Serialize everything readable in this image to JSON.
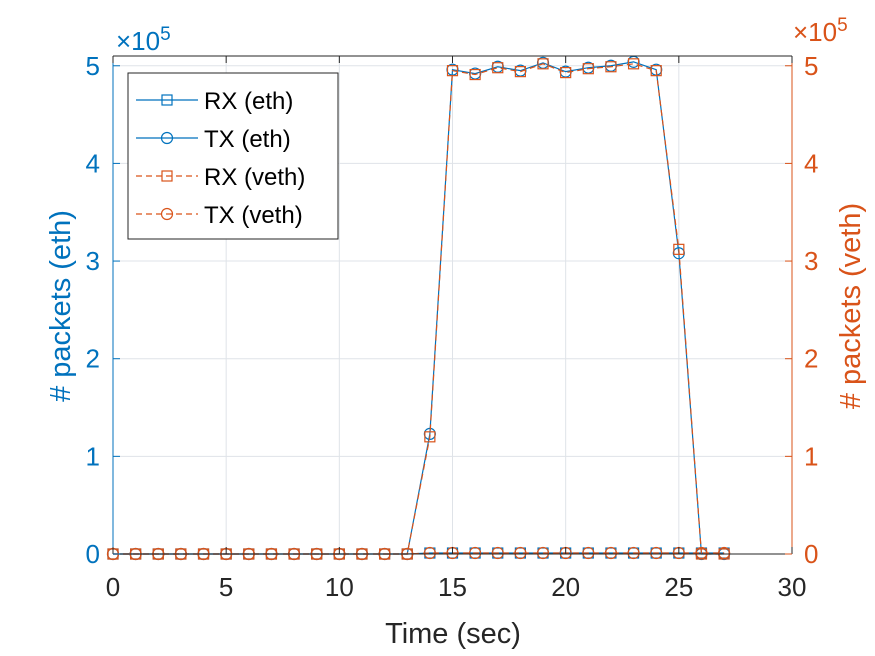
{
  "chart_data": {
    "type": "line",
    "xlabel": "Time (sec)",
    "ylabel_left": "# packets (eth)",
    "ylabel_right": "# packets (veth)",
    "exponent_label_left": "×10",
    "exponent_label_right": "×10",
    "exponent": "5",
    "xlim": [
      0,
      30
    ],
    "ylim_left": [
      0,
      5.1
    ],
    "ylim_right": [
      0,
      5.1
    ],
    "y_unit_multiplier": 100000,
    "xticks": [
      0,
      5,
      10,
      15,
      20,
      25,
      30
    ],
    "yticks": [
      0,
      1,
      2,
      3,
      4,
      5
    ],
    "grid": true,
    "legend_position": "top-left",
    "colors": {
      "left_axis": "#0072BD",
      "right_axis": "#D95319",
      "grid": "#dfe3e8"
    },
    "x": [
      0,
      1,
      2,
      3,
      4,
      5,
      6,
      7,
      8,
      9,
      10,
      11,
      12,
      13,
      14,
      15,
      16,
      17,
      18,
      19,
      20,
      21,
      22,
      23,
      24,
      25,
      26,
      27
    ],
    "series": [
      {
        "name": "RX (eth)",
        "axis": "left",
        "color": "#0072BD",
        "line": "solid",
        "marker": "square",
        "values": [
          0,
          0,
          0,
          0,
          0,
          0,
          0,
          0,
          0,
          0,
          0,
          0,
          0,
          0,
          0.01,
          0.01,
          0.01,
          0.01,
          0.01,
          0.01,
          0.01,
          0.01,
          0.01,
          0.01,
          0.01,
          0.01,
          0.01,
          0.01
        ]
      },
      {
        "name": "TX (eth)",
        "axis": "left",
        "color": "#0072BD",
        "line": "solid",
        "marker": "circle",
        "values": [
          0,
          0,
          0,
          0,
          0,
          0,
          0,
          0,
          0,
          0,
          0,
          0,
          0,
          0,
          1.23,
          4.96,
          4.92,
          4.99,
          4.95,
          5.03,
          4.94,
          4.98,
          5.0,
          5.04,
          4.96,
          3.08,
          0,
          0
        ]
      },
      {
        "name": "RX (veth)",
        "axis": "right",
        "color": "#D95319",
        "line": "dashed",
        "marker": "square",
        "values": [
          0,
          0,
          0,
          0,
          0,
          0,
          0,
          0,
          0,
          0,
          0,
          0,
          0,
          0,
          1.2,
          4.95,
          4.91,
          4.98,
          4.94,
          5.02,
          4.93,
          4.97,
          4.99,
          5.02,
          4.95,
          3.12,
          0,
          0
        ]
      },
      {
        "name": "TX (veth)",
        "axis": "right",
        "color": "#D95319",
        "line": "dashed",
        "marker": "circle",
        "values": [
          0,
          0,
          0,
          0,
          0,
          0,
          0,
          0,
          0,
          0,
          0,
          0,
          0,
          0,
          0.01,
          0.01,
          0.01,
          0.01,
          0.01,
          0.01,
          0.01,
          0.01,
          0.01,
          0.01,
          0.01,
          0.01,
          0.01,
          0.01
        ]
      }
    ]
  }
}
